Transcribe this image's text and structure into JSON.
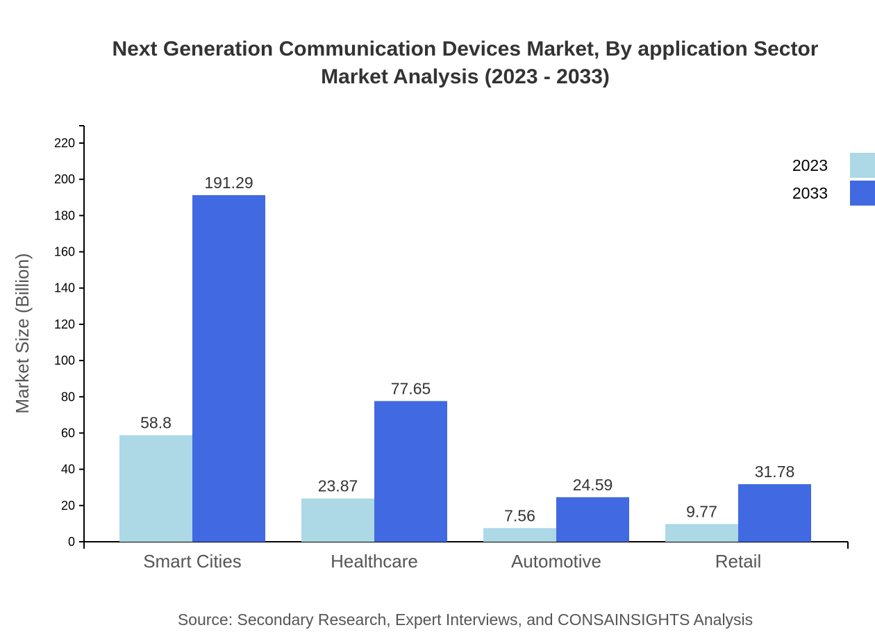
{
  "chart_data": {
    "type": "bar",
    "title_line1": "Next Generation Communication Devices Market, By application Sector",
    "title_line2": "Market Analysis (2023 - 2033)",
    "xlabel": "",
    "ylabel": "Market Size (Billion)",
    "ylim": [
      0,
      229
    ],
    "yticks": [
      0,
      20,
      40,
      60,
      80,
      100,
      120,
      140,
      160,
      180,
      200,
      220
    ],
    "categories": [
      "Smart Cities",
      "Healthcare",
      "Automotive",
      "Retail"
    ],
    "series": [
      {
        "name": "2023",
        "color": "#ADD8E6",
        "values": [
          58.8,
          23.87,
          7.56,
          9.77
        ]
      },
      {
        "name": "2033",
        "color": "#4169E1",
        "values": [
          191.29,
          77.65,
          24.59,
          31.78
        ]
      }
    ],
    "legend_position": "top-right",
    "grid": false,
    "source": "Source: Secondary Research, Expert Interviews, and CONSAINSIGHTS Analysis"
  }
}
